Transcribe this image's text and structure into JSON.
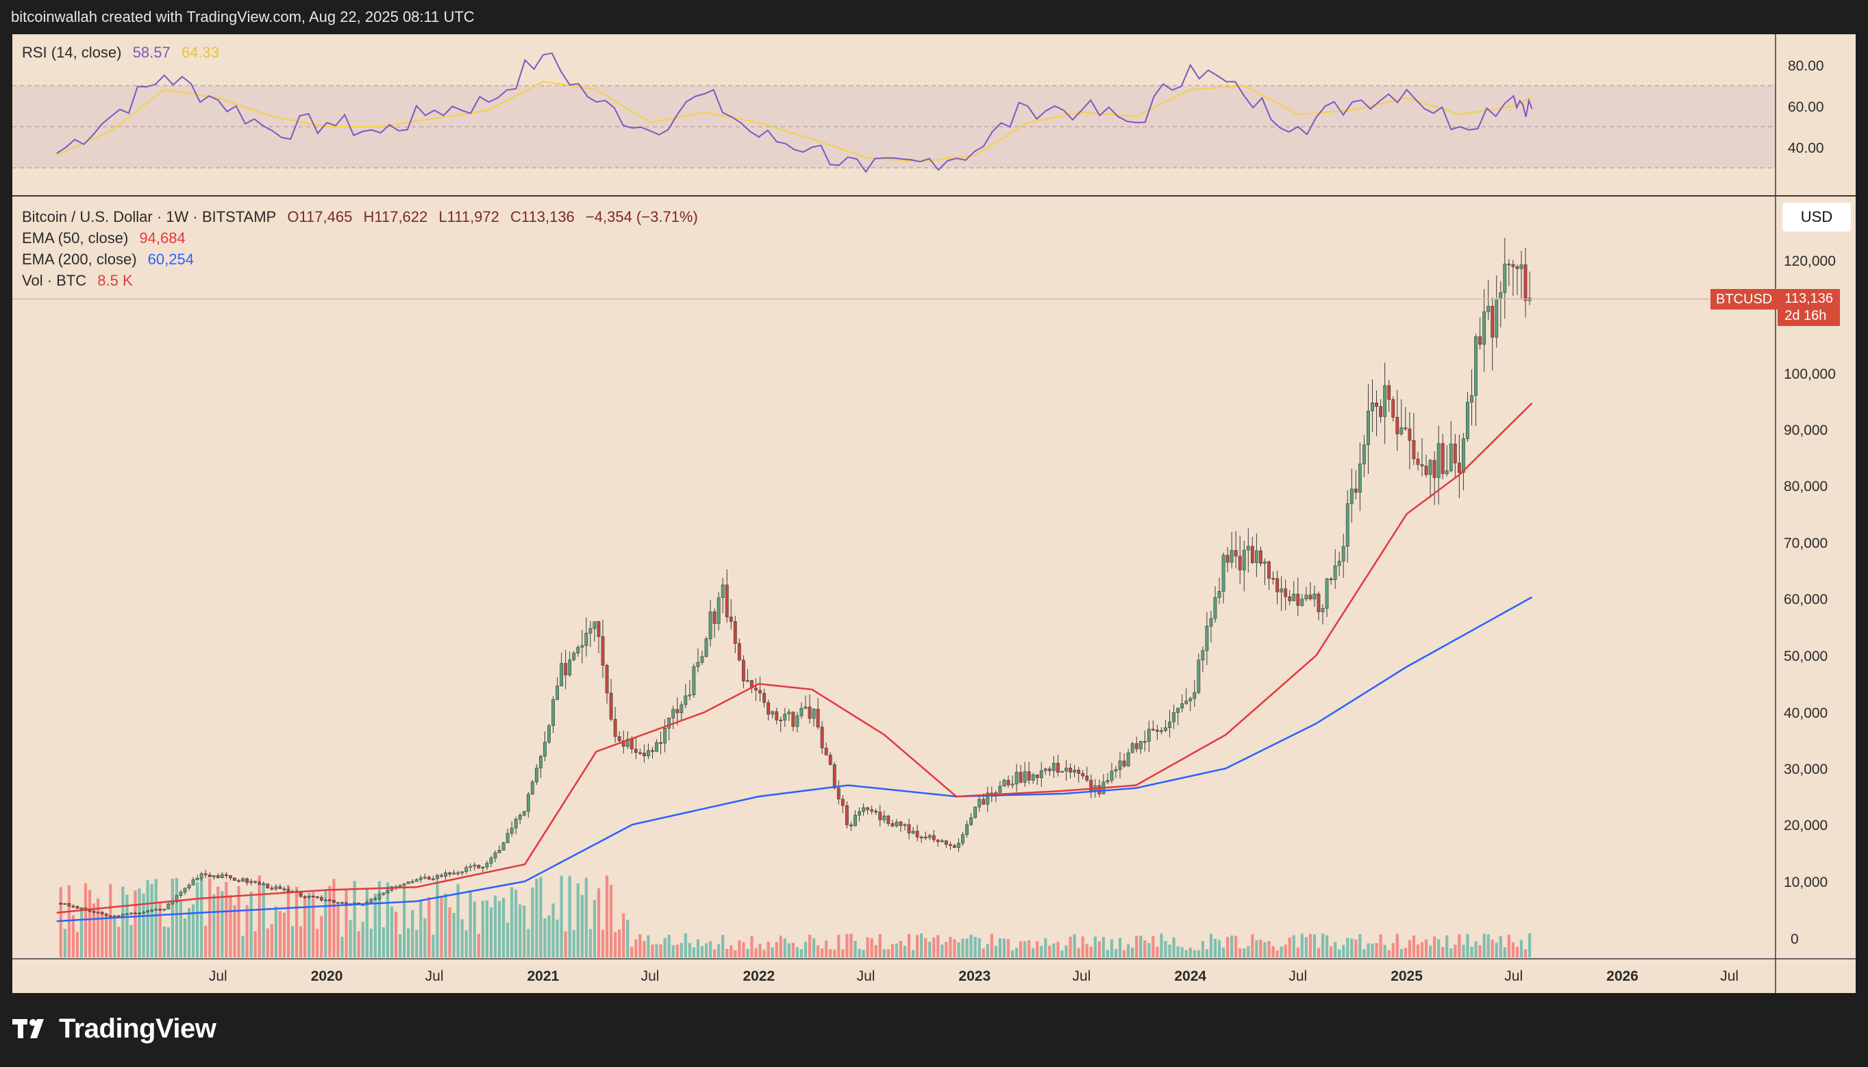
{
  "credit": "bitcoinwallah created with TradingView.com, Aug 22, 2025 08:11 UTC",
  "brand": "TradingView",
  "colors": {
    "background": "#f2e1cf",
    "frame": "#1e1e1e",
    "up": "#5da07a",
    "down": "#c9473c",
    "ema50": "#e03a3e",
    "ema200": "#2962ff",
    "rsi": "#7e57c2",
    "rsi_ma": "#f5d243",
    "vol_up": "#7fbfb0",
    "vol_down": "#f28c86"
  },
  "rsi_legend": {
    "name": "RSI (14, close)",
    "value": "58.57",
    "ma_value": "64.33"
  },
  "price_legend": {
    "symbol": "Bitcoin / U.S. Dollar · 1W · BITSTAMP",
    "open": "O117,465",
    "high": "H117,622",
    "low": "L111,972",
    "close": "C113,136",
    "change": "−4,354 (−3.71%)"
  },
  "ema50_legend": {
    "name": "EMA (50, close)",
    "value": "94,684"
  },
  "ema200_legend": {
    "name": "EMA (200, close)",
    "value": "60,254"
  },
  "vol_legend": {
    "name": "Vol · BTC",
    "value": "8.5 K"
  },
  "currency_button": "USD",
  "price_tag": {
    "symbol": "BTCUSD",
    "price": "113,136",
    "countdown": "2d 16h"
  },
  "chart_data": [
    {
      "type": "line",
      "title": "RSI (14, close)",
      "ylim": [
        20,
        95
      ],
      "y_ticks": [
        "80.00",
        "60.00",
        "40.00"
      ],
      "band": [
        30,
        70
      ],
      "x_dates": [
        "2018-10",
        "2019-01",
        "2019-04",
        "2019-07",
        "2019-10",
        "2020-01",
        "2020-04",
        "2020-07",
        "2020-10",
        "2021-01",
        "2021-04",
        "2021-07",
        "2021-10",
        "2022-01",
        "2022-04",
        "2022-07",
        "2022-10",
        "2023-01",
        "2023-04",
        "2023-07",
        "2023-10",
        "2024-01",
        "2024-04",
        "2024-07",
        "2024-10",
        "2025-01",
        "2025-04",
        "2025-07",
        "2025-08"
      ],
      "series": [
        {
          "name": "RSI",
          "values": [
            37,
            55,
            75,
            63,
            48,
            52,
            47,
            58,
            62,
            85,
            62,
            48,
            66,
            45,
            40,
            28,
            33,
            38,
            60,
            58,
            52,
            80,
            65,
            50,
            62,
            68,
            50,
            65,
            58.57
          ]
        },
        {
          "name": "RSI MA",
          "values": [
            36,
            48,
            68,
            64,
            55,
            50,
            50,
            54,
            58,
            72,
            68,
            52,
            57,
            52,
            44,
            35,
            33,
            36,
            52,
            57,
            55,
            68,
            70,
            56,
            58,
            64,
            56,
            60,
            64.33
          ]
        }
      ]
    },
    {
      "type": "candlestick",
      "title": "Bitcoin / U.S. Dollar · 1W · BITSTAMP",
      "ylim": [
        0,
        130000
      ],
      "y_ticks": [
        "120,000",
        "100,000",
        "90,000",
        "80,000",
        "70,000",
        "60,000",
        "50,000",
        "40,000",
        "30,000",
        "20,000",
        "10,000",
        "0"
      ],
      "x_tick_labels": [
        "Jul",
        "2020",
        "Jul",
        "2021",
        "Jul",
        "2022",
        "Jul",
        "2023",
        "Jul",
        "2024",
        "Jul",
        "2025",
        "Jul",
        "2026",
        "Jul"
      ],
      "x_tick_dates": [
        "2019-07",
        "2020-01",
        "2020-07",
        "2021-01",
        "2021-07",
        "2022-01",
        "2022-07",
        "2023-01",
        "2023-07",
        "2024-01",
        "2024-07",
        "2025-01",
        "2025-07",
        "2026-01",
        "2026-07"
      ],
      "price_dates": [
        "2018-10",
        "2019-01",
        "2019-04",
        "2019-06",
        "2019-09",
        "2019-12",
        "2020-03",
        "2020-05",
        "2020-08",
        "2020-10",
        "2020-12",
        "2021-01",
        "2021-02",
        "2021-04",
        "2021-05",
        "2021-07",
        "2021-09",
        "2021-11",
        "2021-12",
        "2022-02",
        "2022-04",
        "2022-06",
        "2022-07",
        "2022-09",
        "2022-11",
        "2022-12",
        "2023-01",
        "2023-03",
        "2023-04",
        "2023-06",
        "2023-08",
        "2023-10",
        "2023-11",
        "2024-01",
        "2024-03",
        "2024-05",
        "2024-07",
        "2024-08",
        "2024-09",
        "2024-11",
        "2024-12",
        "2025-02",
        "2025-04",
        "2025-05",
        "2025-07",
        "2025-08"
      ],
      "price_close": [
        6300,
        3800,
        5200,
        11500,
        9800,
        7200,
        5800,
        9400,
        11600,
        13000,
        23000,
        33000,
        47000,
        58000,
        36000,
        33000,
        43000,
        62000,
        47000,
        38000,
        40000,
        20000,
        23000,
        19500,
        17000,
        16500,
        23000,
        28000,
        29000,
        30500,
        26000,
        34000,
        37000,
        42000,
        68000,
        67000,
        58000,
        59000,
        63000,
        95000,
        94000,
        84000,
        85000,
        105000,
        118000,
        113136
      ],
      "series": [
        {
          "name": "EMA (50, close)",
          "dates": [
            "2018-10",
            "2019-06",
            "2020-01",
            "2020-06",
            "2020-12",
            "2021-04",
            "2021-10",
            "2022-01",
            "2022-04",
            "2022-08",
            "2022-12",
            "2023-06",
            "2023-10",
            "2024-03",
            "2024-08",
            "2025-01",
            "2025-04",
            "2025-08"
          ],
          "values": [
            4500,
            7000,
            8500,
            9000,
            13000,
            33000,
            40000,
            45000,
            44000,
            36000,
            25000,
            26000,
            27000,
            36000,
            50000,
            75000,
            82000,
            94684
          ]
        },
        {
          "name": "EMA (200, close)",
          "dates": [
            "2018-10",
            "2019-06",
            "2020-06",
            "2020-12",
            "2021-06",
            "2022-01",
            "2022-06",
            "2022-12",
            "2023-06",
            "2023-10",
            "2024-03",
            "2024-08",
            "2025-01",
            "2025-08"
          ],
          "values": [
            3000,
            4500,
            6500,
            10000,
            20000,
            25000,
            27000,
            25000,
            25500,
            26500,
            30000,
            38000,
            48000,
            60254
          ]
        }
      ],
      "volume_vol_unit": "BTC"
    }
  ]
}
